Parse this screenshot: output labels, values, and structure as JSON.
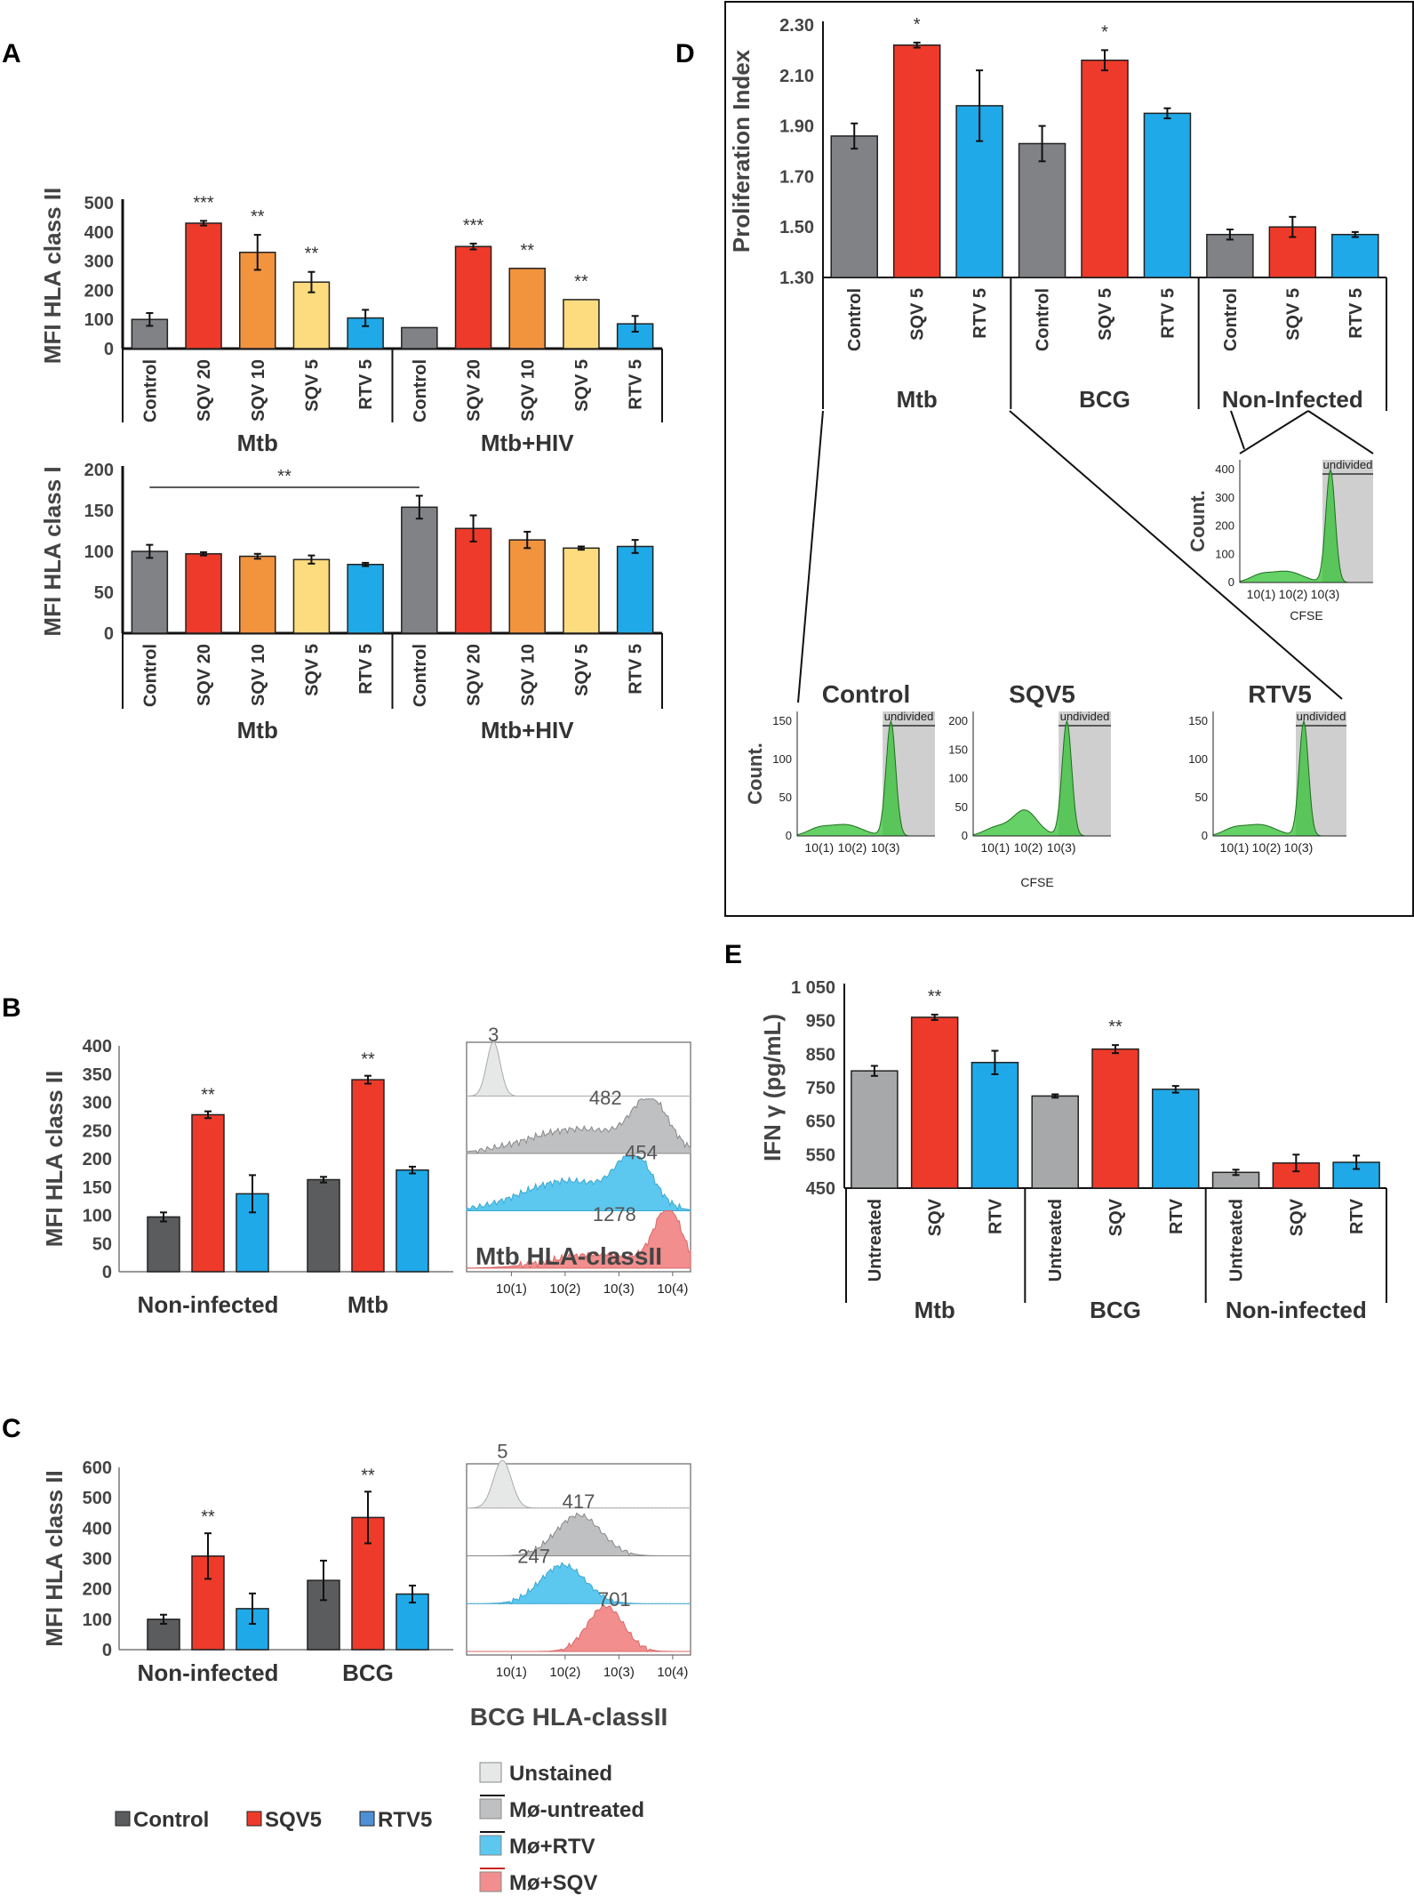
{
  "colors": {
    "Control": "#808285",
    "SQV 20": "#EE3A2A",
    "SQV 10": "#F2933E",
    "SQV 5": "#FDDB7F",
    "RTV 5": "#1FA9E8",
    "ControlDark": "#5A5C5E",
    "Untreated": "#A6A8AA",
    "Unstained": "#E6E8E7",
    "Mø-untreated": "#BFC0C1",
    "Mø+RTV": "#5CC8EF",
    "Mø+SQV": "#F28E8E",
    "cfse": "#33C233"
  },
  "panels": {
    "A": {
      "letter": "A"
    },
    "B": {
      "letter": "B",
      "flow_xlabel": "Mtb HLA-classII"
    },
    "C": {
      "letter": "C",
      "flow_xlabel": "BCG HLA-classII"
    },
    "D": {
      "letter": "D",
      "cfse_label": "CFSE",
      "count_label": "Count.",
      "undivided": "undivided"
    },
    "E": {
      "letter": "E"
    }
  },
  "chart_data": [
    {
      "id": "A1",
      "type": "bar",
      "ylabel": "MFI HLA class II",
      "ylim": [
        0,
        500
      ],
      "yticks": [
        "0",
        "100",
        "200",
        "300",
        "400",
        "500"
      ],
      "categories": [
        "Control",
        "SQV 20",
        "SQV 10",
        "SQV 5",
        "RTV 5",
        "Control",
        "SQV 20",
        "SQV 10",
        "SQV 5",
        "RTV 5"
      ],
      "values": [
        100,
        430,
        330,
        228,
        105,
        72,
        350,
        275,
        168,
        85
      ],
      "errors": [
        22,
        8,
        60,
        35,
        28,
        0,
        10,
        0,
        0,
        27
      ],
      "stars": [
        "",
        "***",
        "**",
        "**",
        "",
        "",
        "***",
        "**",
        "**",
        ""
      ],
      "groups": [
        "Mtb",
        "Mtb+HIV"
      ]
    },
    {
      "id": "A2",
      "type": "bar",
      "ylabel": "MFI HLA class I",
      "ylim": [
        0,
        200
      ],
      "yticks": [
        "0",
        "50",
        "100",
        "150",
        "200"
      ],
      "categories": [
        "Control",
        "SQV 20",
        "SQV 10",
        "SQV 5",
        "RTV 5",
        "Control",
        "SQV 20",
        "SQV 10",
        "SQV 5",
        "RTV 5"
      ],
      "values": [
        100,
        97,
        94,
        90,
        84,
        154,
        128,
        114,
        104,
        106
      ],
      "errors": [
        8,
        2,
        3,
        5,
        2,
        14,
        16,
        10,
        2,
        8
      ],
      "bracket_star": "**",
      "groups": [
        "Mtb",
        "Mtb+HIV"
      ]
    },
    {
      "id": "B",
      "type": "bar",
      "ylabel": "MFI HLA class II",
      "ylim": [
        0,
        400
      ],
      "yticks": [
        "0",
        "50",
        "100",
        "150",
        "200",
        "250",
        "300",
        "350",
        "400"
      ],
      "groups": [
        "Non-infected",
        "Mtb"
      ],
      "series": [
        {
          "name": "Control",
          "values": [
            97,
            163
          ],
          "errors": [
            8,
            5
          ]
        },
        {
          "name": "SQV5",
          "values": [
            278,
            340
          ],
          "errors": [
            6,
            7
          ]
        },
        {
          "name": "RTV5",
          "values": [
            138,
            180
          ],
          "errors": [
            33,
            6
          ]
        }
      ],
      "stars": [
        "**",
        "**"
      ]
    },
    {
      "id": "C",
      "type": "bar",
      "ylabel": "MFI HLA class II",
      "ylim": [
        0,
        600
      ],
      "yticks": [
        "0",
        "100",
        "200",
        "300",
        "400",
        "500",
        "600"
      ],
      "groups": [
        "Non-infected",
        "BCG"
      ],
      "series": [
        {
          "name": "Control",
          "values": [
            100,
            228
          ],
          "errors": [
            15,
            65
          ]
        },
        {
          "name": "SQV5",
          "values": [
            308,
            435
          ],
          "errors": [
            75,
            85
          ]
        },
        {
          "name": "RTV5",
          "values": [
            135,
            183
          ],
          "errors": [
            50,
            28
          ]
        }
      ],
      "stars": [
        "**",
        "**"
      ]
    },
    {
      "id": "D",
      "type": "bar",
      "ylabel": "Proliferation Index",
      "ylim": [
        1.3,
        2.3
      ],
      "yticks": [
        "1.30",
        "1.50",
        "1.70",
        "1.90",
        "2.10",
        "2.30"
      ],
      "categories": [
        "Control",
        "SQV 5",
        "RTV 5",
        "Control",
        "SQV 5",
        "RTV 5",
        "Control",
        "SQV 5",
        "RTV 5"
      ],
      "values": [
        1.86,
        2.22,
        1.98,
        1.83,
        2.16,
        1.95,
        1.47,
        1.5,
        1.47
      ],
      "errors": [
        0.05,
        0.01,
        0.14,
        0.07,
        0.04,
        0.02,
        0.02,
        0.04,
        0.01
      ],
      "stars": [
        "",
        "*",
        "",
        "",
        "*",
        "",
        "",
        "",
        ""
      ],
      "groups": [
        "Mtb",
        "BCG",
        "Non-Infected"
      ]
    },
    {
      "id": "E",
      "type": "bar",
      "ylabel": "IFN γ (pg/mL)",
      "ylim": [
        450,
        1050
      ],
      "yticks": [
        "450",
        "550",
        "650",
        "750",
        "850",
        "950",
        "1 050"
      ],
      "categories": [
        "Untreated",
        "SQV",
        "RTV",
        "Untreated",
        "SQV",
        "RTV",
        "Untreated",
        "SQV",
        "RTV"
      ],
      "values": [
        800,
        960,
        825,
        725,
        865,
        745,
        497,
        525,
        527
      ],
      "errors": [
        15,
        8,
        35,
        5,
        12,
        10,
        8,
        25,
        20
      ],
      "stars": [
        "",
        "**",
        "",
        "",
        "**",
        "",
        "",
        "",
        ""
      ],
      "groups": [
        "Mtb",
        "BCG",
        "Non-infected"
      ]
    }
  ],
  "flow_B": {
    "peaks": [
      "3",
      "482",
      "454",
      "1278"
    ],
    "xticks": [
      "10(1)",
      "10(2)",
      "10(3)",
      "10(4)"
    ]
  },
  "flow_C": {
    "peaks": [
      "5",
      "417",
      "247",
      "701"
    ],
    "xticks": [
      "10(1)",
      "10(2)",
      "10(3)",
      "10(4)"
    ]
  },
  "cfse": {
    "plots": [
      {
        "title": "Control",
        "yticks": [
          "0",
          "50",
          "100",
          "150"
        ]
      },
      {
        "title": "SQV5",
        "yticks": [
          "0",
          "50",
          "100",
          "150",
          "200"
        ]
      },
      {
        "title": "RTV5",
        "yticks": [
          "0",
          "50",
          "100",
          "150"
        ]
      },
      {
        "title": "",
        "yticks": [
          "0",
          "100",
          "200",
          "300",
          "400"
        ]
      }
    ],
    "xticks": [
      "10(1)",
      "10(2)",
      "10(3)"
    ]
  },
  "legend_bars": [
    "Control",
    "SQV5",
    "RTV5"
  ],
  "legend_flow": [
    "Unstained",
    "Mø-untreated",
    "Mø+RTV",
    "Mø+SQV"
  ]
}
